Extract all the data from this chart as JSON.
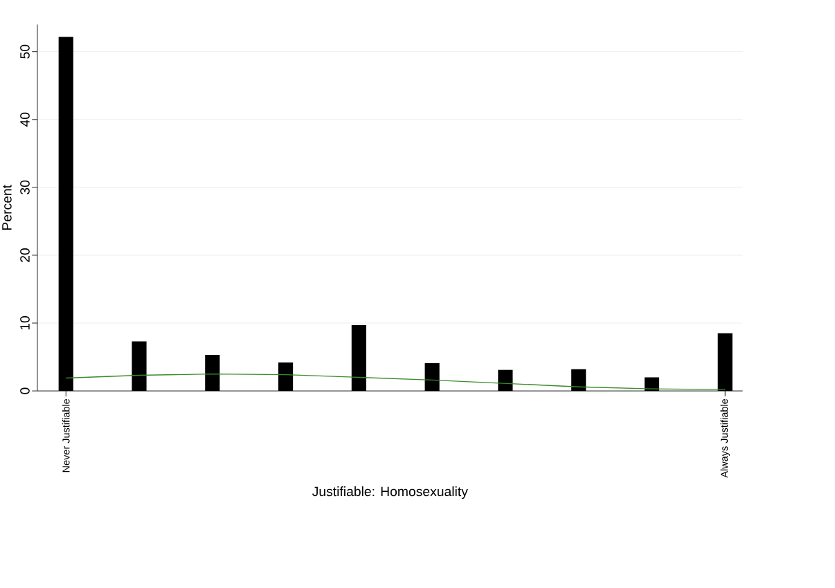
{
  "chart_data": {
    "type": "bar",
    "xlabel": "Justifiable: Homosexuality",
    "ylabel": "Percent",
    "categories": [
      "Never Justifiable",
      null,
      null,
      null,
      null,
      null,
      null,
      null,
      null,
      "Always Justifiable"
    ],
    "ylim": [
      0,
      54
    ],
    "yticks": [
      0,
      10,
      20,
      30,
      40,
      50
    ],
    "grid": "y",
    "series": [
      {
        "color": "#000000",
        "values": [
          52.2,
          7.3,
          5.3,
          4.2,
          9.7,
          4.1,
          3.1,
          3.2,
          2.0,
          8.5
        ]
      },
      {
        "type": "line",
        "color": "#3a8a2a",
        "values": [
          1.9,
          2.3,
          2.5,
          2.4,
          2.0,
          1.6,
          1.1,
          0.6,
          0.3,
          0.2
        ]
      }
    ]
  }
}
